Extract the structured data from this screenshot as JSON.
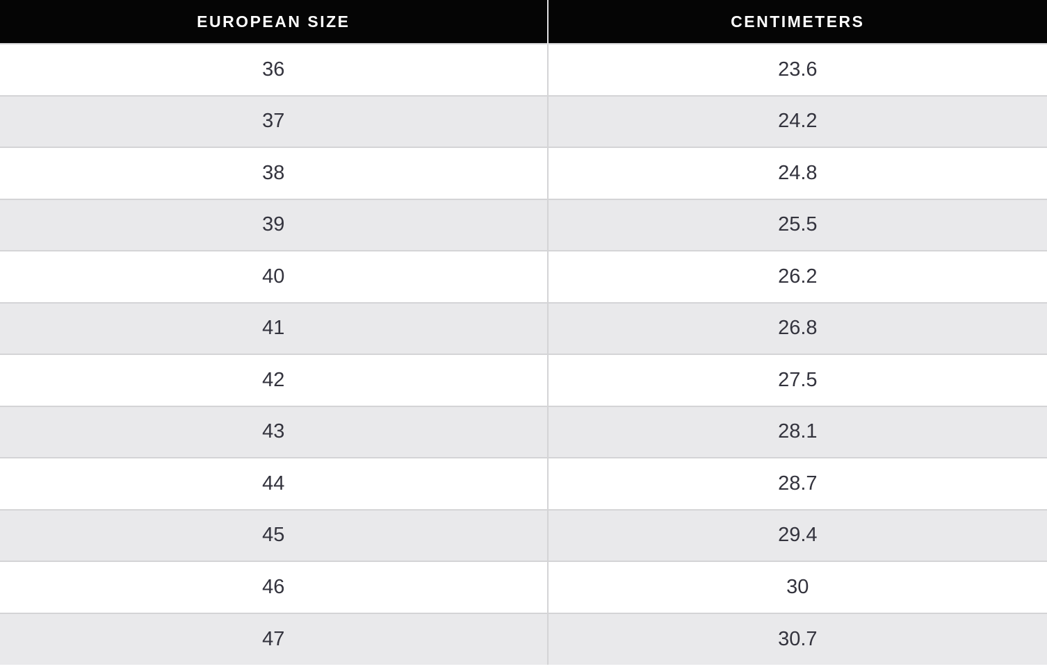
{
  "table": {
    "columns": [
      "EUROPEAN SIZE",
      "CENTIMETERS"
    ],
    "rows": [
      [
        "36",
        "23.6"
      ],
      [
        "37",
        "24.2"
      ],
      [
        "38",
        "24.8"
      ],
      [
        "39",
        "25.5"
      ],
      [
        "40",
        "26.2"
      ],
      [
        "41",
        "26.8"
      ],
      [
        "42",
        "27.5"
      ],
      [
        "43",
        "28.1"
      ],
      [
        "44",
        "28.7"
      ],
      [
        "45",
        "29.4"
      ],
      [
        "46",
        "30"
      ],
      [
        "47",
        "30.7"
      ]
    ]
  },
  "chart_data": {
    "type": "table",
    "columns": [
      "EUROPEAN SIZE",
      "CENTIMETERS"
    ],
    "rows": [
      [
        36,
        23.6
      ],
      [
        37,
        24.2
      ],
      [
        38,
        24.8
      ],
      [
        39,
        25.5
      ],
      [
        40,
        26.2
      ],
      [
        41,
        26.8
      ],
      [
        42,
        27.5
      ],
      [
        43,
        28.1
      ],
      [
        44,
        28.7
      ],
      [
        45,
        29.4
      ],
      [
        46,
        30
      ],
      [
        47,
        30.7
      ]
    ]
  },
  "colors": {
    "header_bg": "#050505",
    "header_text": "#ffffff",
    "row_bg": "#ffffff",
    "row_alt_bg": "#e9e9eb",
    "border": "#d4d4d6",
    "cell_text": "#33333d",
    "page_bg": "#ffffff"
  }
}
